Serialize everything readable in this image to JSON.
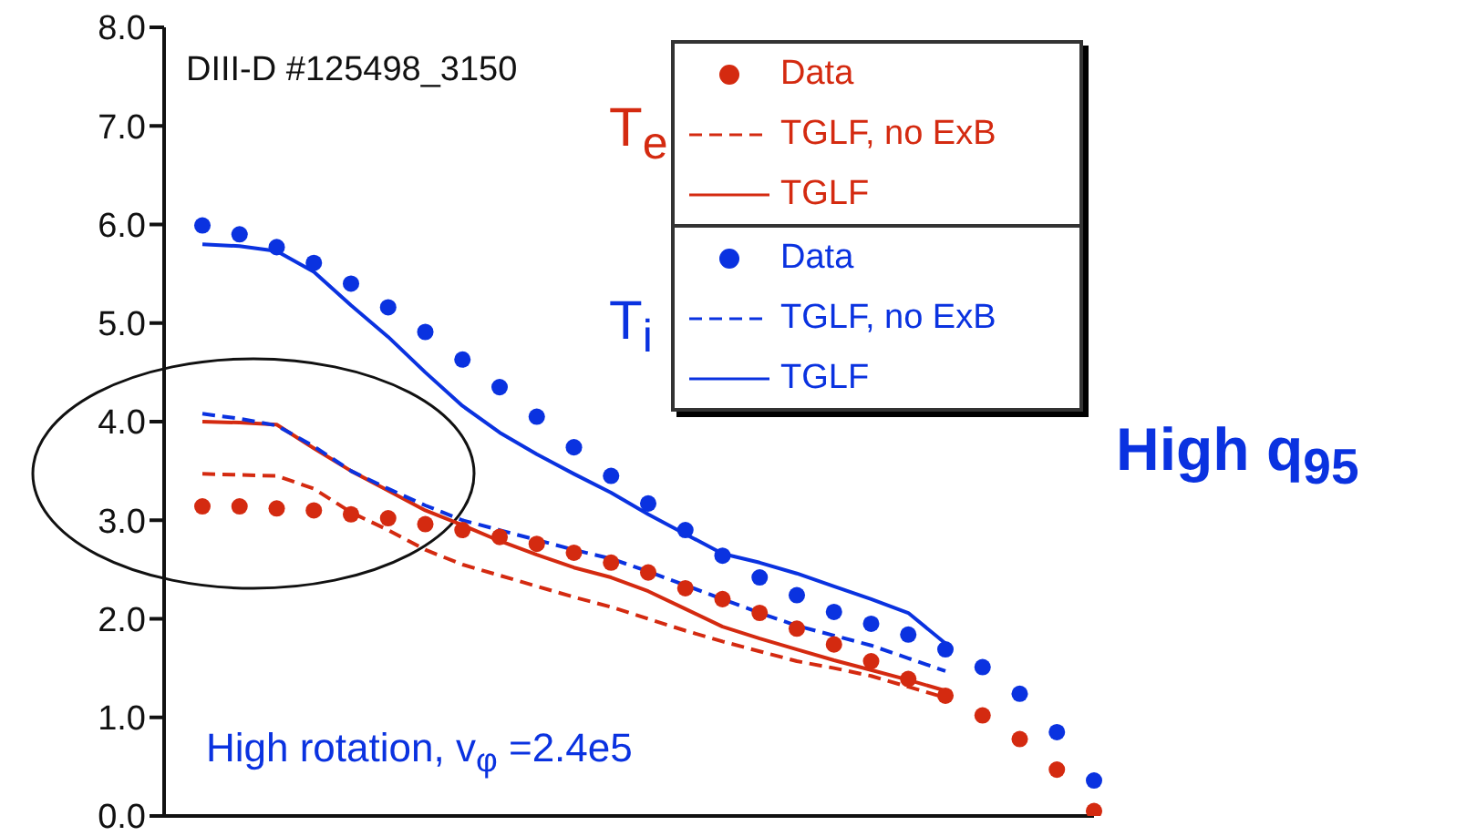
{
  "chart_data": {
    "type": "line",
    "categories": [
      null,
      null,
      null,
      null,
      null,
      null,
      null,
      null,
      null,
      null,
      null,
      null,
      null,
      null,
      null,
      null,
      null,
      null,
      null,
      null,
      null,
      null,
      null,
      null,
      null
    ],
    "ylim": [
      0,
      8
    ],
    "yticks": [
      {
        "value": 0,
        "label": "0.0"
      },
      {
        "value": 1,
        "label": "1.0"
      },
      {
        "value": 2,
        "label": "2.0"
      },
      {
        "value": 3,
        "label": "3.0"
      },
      {
        "value": 4,
        "label": "4.0"
      },
      {
        "value": 5,
        "label": "5.0"
      },
      {
        "value": 6,
        "label": "6.0"
      },
      {
        "value": 7,
        "label": "7.0"
      },
      {
        "value": 8,
        "label": "8.0"
      }
    ],
    "tick_labels": "y",
    "grid": false,
    "legend": "top right",
    "annotations": [
      "DIII-D #125498_3150",
      "T$_{e}$",
      "T$_{i}$",
      "High rotation, v$_{φ}$ =2.4e5",
      "High q$_{95}$"
    ],
    "series": [
      {
        "name": "Data",
        "type": "scatter",
        "marker": "circle",
        "color": "#d42a10",
        "values": [
          3.14,
          3.14,
          3.12,
          3.1,
          3.06,
          3.02,
          2.96,
          2.9,
          2.83,
          2.76,
          2.67,
          2.57,
          2.47,
          2.31,
          2.2,
          2.06,
          1.9,
          1.74,
          1.57,
          1.39,
          1.22,
          1.02,
          0.78,
          0.47,
          0.05
        ]
      },
      {
        "name": "TGLF, no ExB",
        "line_style": "dashed",
        "marker": "none",
        "color": "#d42a10",
        "values": [
          3.47,
          3.46,
          3.45,
          3.32,
          3.08,
          2.9,
          2.7,
          2.55,
          2.44,
          2.33,
          2.22,
          2.12,
          2.0,
          1.88,
          1.77,
          1.67,
          1.57,
          1.5,
          1.42,
          1.31,
          1.2,
          null,
          null,
          null,
          null
        ]
      },
      {
        "name": "TGLF",
        "line_style": "solid",
        "marker": "none",
        "color": "#d42a10",
        "values": [
          4.0,
          3.99,
          3.97,
          3.73,
          3.5,
          3.3,
          3.1,
          2.95,
          2.79,
          2.65,
          2.52,
          2.42,
          2.28,
          2.1,
          1.92,
          1.8,
          1.69,
          1.58,
          1.48,
          1.38,
          1.27,
          null,
          null,
          null,
          null
        ]
      },
      {
        "name": "Data",
        "type": "scatter",
        "marker": "circle",
        "color": "#0a32e0",
        "values": [
          5.99,
          5.9,
          5.77,
          5.61,
          5.4,
          5.16,
          4.91,
          4.63,
          4.35,
          4.05,
          3.74,
          3.45,
          3.17,
          2.9,
          2.64,
          2.42,
          2.24,
          2.07,
          1.95,
          1.84,
          1.69,
          1.51,
          1.24,
          0.85,
          0.36
        ]
      },
      {
        "name": "TGLF, no ExB",
        "line_style": "dashed",
        "marker": "none",
        "color": "#0a32e0",
        "values": [
          4.08,
          4.03,
          3.96,
          3.75,
          3.5,
          3.32,
          3.15,
          3.0,
          2.9,
          2.8,
          2.7,
          2.61,
          2.48,
          2.34,
          2.2,
          2.06,
          1.93,
          1.83,
          1.73,
          1.6,
          1.47,
          null,
          null,
          null,
          null
        ]
      },
      {
        "name": "TGLF",
        "line_style": "solid",
        "marker": "none",
        "color": "#0a32e0",
        "values": [
          5.8,
          5.78,
          5.73,
          5.52,
          5.18,
          4.86,
          4.5,
          4.16,
          3.89,
          3.67,
          3.47,
          3.28,
          3.06,
          2.86,
          2.66,
          2.57,
          2.46,
          2.33,
          2.2,
          2.06,
          1.75,
          null,
          null,
          null,
          null
        ]
      }
    ]
  }
}
